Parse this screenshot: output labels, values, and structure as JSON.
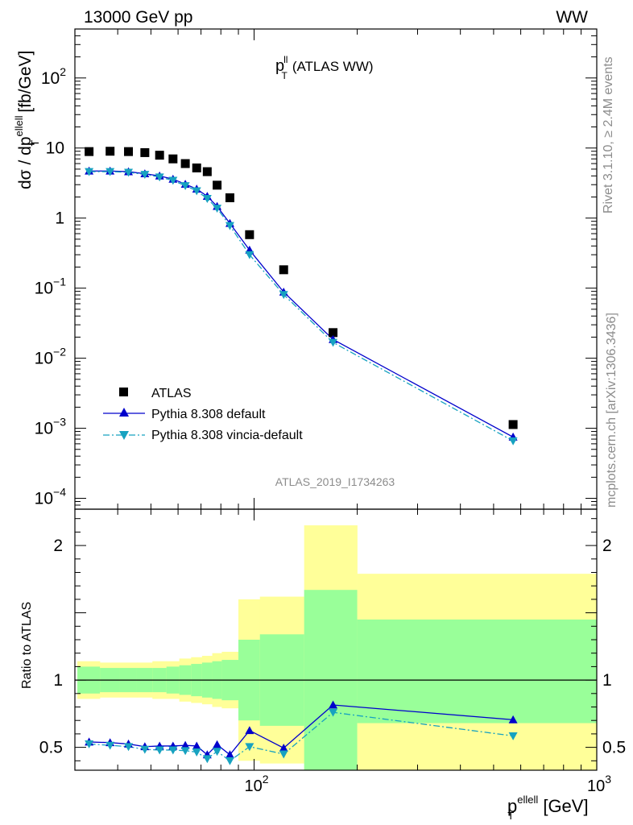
{
  "header": {
    "left": "13000 GeV pp",
    "right": "WW"
  },
  "plot_title": {
    "main": "p",
    "sup": "ll",
    "sub": "T",
    "rest": "(ATLAS WW)"
  },
  "ylabel": {
    "a": "dσ / dp",
    "sup": "ellell",
    "sub": "T",
    "b": " [fb/GeV]"
  },
  "ratio_ylabel": "Ratio to ATLAS",
  "xlabel": {
    "a": "p",
    "sup": "ellell",
    "sub": "T",
    "b": " [GeV]"
  },
  "side_text": {
    "rivet": "Rivet 3.1.10, ≥ 2.4M events",
    "mcplots": "mcplots.cern.ch [arXiv:1306.3436]"
  },
  "analysis_id": "ATLAS_2019_I1734263",
  "legend": [
    "ATLAS",
    "Pythia 8.308 default",
    "Pythia 8.308 vincia-default"
  ],
  "colors": {
    "data": "#000000",
    "default": "#0000cc",
    "vincia": "#17a2c0",
    "band_inner": "#99ff99",
    "band_outer": "#ffff99"
  },
  "main_ticks": [
    {
      "v": 0.0001,
      "base": "10",
      "exp": "−4"
    },
    {
      "v": 0.001,
      "base": "10",
      "exp": "−3"
    },
    {
      "v": 0.01,
      "base": "10",
      "exp": "−2"
    },
    {
      "v": 0.1,
      "base": "10",
      "exp": "−1"
    },
    {
      "v": 1,
      "base": "1",
      "exp": ""
    },
    {
      "v": 10,
      "base": "10",
      "exp": ""
    },
    {
      "v": 100,
      "base": "10",
      "exp": "2"
    }
  ],
  "ratio_ticks": [
    {
      "v": 0.5,
      "t": "0.5"
    },
    {
      "v": 1,
      "t": "1"
    },
    {
      "v": 2,
      "t": "2"
    }
  ],
  "x_ticks": [
    {
      "v": 100,
      "base": "10",
      "exp": "2"
    },
    {
      "v": 1000,
      "base": "10",
      "exp": "3"
    }
  ],
  "chart_data": {
    "type": "scatter",
    "xscale": "log",
    "yscale": "log",
    "xlim": [
      30,
      1000
    ],
    "ylim": [
      7e-05,
      500
    ],
    "ratio_ylim": [
      0.33,
      2.27
    ],
    "x": [
      33.0,
      38.0,
      43.0,
      48.0,
      53.0,
      58.0,
      63.0,
      68.0,
      73.0,
      78.0,
      85.0,
      97.0,
      122.0,
      170.0,
      570.0
    ],
    "series": [
      {
        "name": "ATLAS",
        "marker": "square",
        "values": [
          8.9,
          9.0,
          8.9,
          8.6,
          7.9,
          7.0,
          6.0,
          5.2,
          4.6,
          2.95,
          1.95,
          0.58,
          0.183,
          0.0232,
          0.00113
        ]
      },
      {
        "name": "Pythia 8.308 default",
        "marker": "triangle-up",
        "values": [
          4.7,
          4.7,
          4.6,
          4.3,
          4.0,
          3.6,
          3.05,
          2.6,
          2.05,
          1.47,
          0.84,
          0.35,
          0.088,
          0.0185,
          0.00075
        ]
      },
      {
        "name": "Pythia 8.308 vincia-default",
        "marker": "triangle-down",
        "values": [
          4.6,
          4.6,
          4.5,
          4.2,
          3.85,
          3.45,
          2.9,
          2.45,
          1.9,
          1.38,
          0.78,
          0.3,
          0.081,
          0.0168,
          0.00066
        ]
      }
    ],
    "ratio": {
      "default": [
        0.54,
        0.535,
        0.525,
        0.505,
        0.51,
        0.51,
        0.515,
        0.51,
        0.445,
        0.52,
        0.445,
        0.625,
        0.495,
        0.815,
        0.705
      ],
      "default_err": [
        0.01,
        0.01,
        0.01,
        0.01,
        0.01,
        0.01,
        0.01,
        0.01,
        0.01,
        0.01,
        0.01,
        0.01,
        0.01,
        0.02,
        0.025
      ],
      "vincia": [
        0.525,
        0.515,
        0.505,
        0.485,
        0.48,
        0.48,
        0.475,
        0.465,
        0.415,
        0.47,
        0.4,
        0.505,
        0.45,
        0.76,
        0.585
      ],
      "vincia_err": [
        0.01,
        0.01,
        0.01,
        0.01,
        0.01,
        0.01,
        0.01,
        0.01,
        0.01,
        0.01,
        0.01,
        0.01,
        0.01,
        0.02,
        0.025
      ]
    },
    "bands": [
      {
        "x0": 30.5,
        "x1": 35.5,
        "inner": [
          0.9,
          1.1
        ],
        "outer": [
          0.86,
          1.14
        ]
      },
      {
        "x0": 35.5,
        "x1": 40.5,
        "inner": [
          0.91,
          1.09
        ],
        "outer": [
          0.87,
          1.13
        ]
      },
      {
        "x0": 40.5,
        "x1": 45.5,
        "inner": [
          0.91,
          1.09
        ],
        "outer": [
          0.87,
          1.13
        ]
      },
      {
        "x0": 45.5,
        "x1": 50.5,
        "inner": [
          0.91,
          1.09
        ],
        "outer": [
          0.87,
          1.13
        ]
      },
      {
        "x0": 50.5,
        "x1": 55.5,
        "inner": [
          0.91,
          1.09
        ],
        "outer": [
          0.86,
          1.14
        ]
      },
      {
        "x0": 55.5,
        "x1": 60.5,
        "inner": [
          0.9,
          1.1
        ],
        "outer": [
          0.86,
          1.14
        ]
      },
      {
        "x0": 60.5,
        "x1": 65.5,
        "inner": [
          0.89,
          1.11
        ],
        "outer": [
          0.84,
          1.16
        ]
      },
      {
        "x0": 65.5,
        "x1": 70.5,
        "inner": [
          0.88,
          1.12
        ],
        "outer": [
          0.83,
          1.17
        ]
      },
      {
        "x0": 70.5,
        "x1": 75.5,
        "inner": [
          0.87,
          1.13
        ],
        "outer": [
          0.82,
          1.18
        ]
      },
      {
        "x0": 75.5,
        "x1": 80.5,
        "inner": [
          0.86,
          1.14
        ],
        "outer": [
          0.8,
          1.2
        ]
      },
      {
        "x0": 80.5,
        "x1": 90.0,
        "inner": [
          0.85,
          1.15
        ],
        "outer": [
          0.79,
          1.21
        ]
      },
      {
        "x0": 90.0,
        "x1": 104.0,
        "inner": [
          0.7,
          1.3
        ],
        "outer": [
          0.4,
          1.6
        ]
      },
      {
        "x0": 104.0,
        "x1": 140.0,
        "inner": [
          0.66,
          1.34
        ],
        "outer": [
          0.38,
          1.62
        ]
      },
      {
        "x0": 140.0,
        "x1": 200.0,
        "inner": [
          0.33,
          1.67
        ],
        "outer": [
          0.33,
          2.15
        ]
      },
      {
        "x0": 200.0,
        "x1": 1000.0,
        "inner": [
          0.68,
          1.45
        ],
        "outer": [
          0.33,
          1.79
        ]
      }
    ]
  }
}
